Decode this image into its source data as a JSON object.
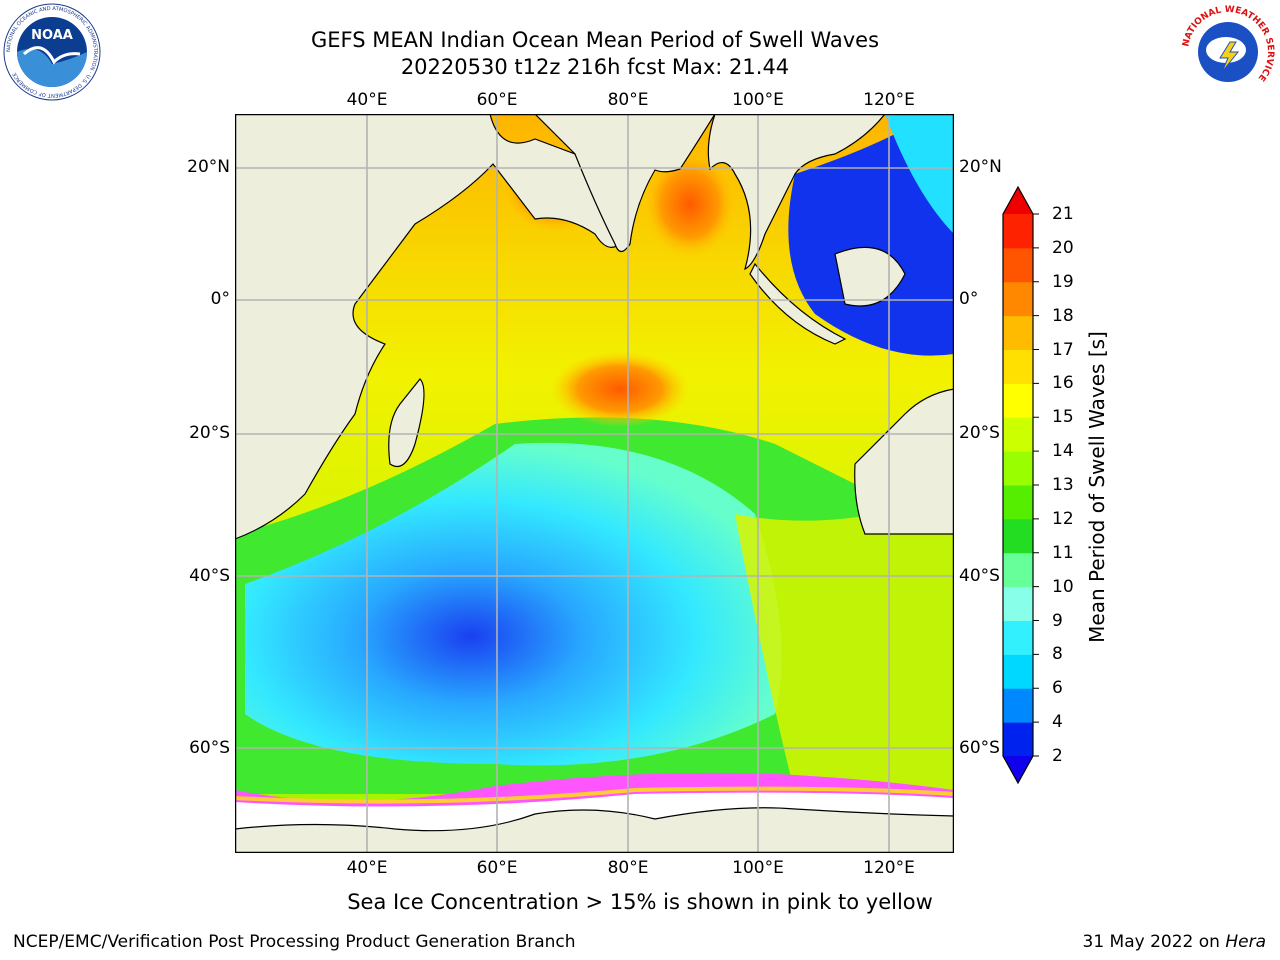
{
  "title": {
    "line1": "GEFS MEAN Indian Ocean Mean Period of Swell Waves",
    "line2": "20220530 t12z 216h fcst   Max: 21.44"
  },
  "axes": {
    "top_lon_labels": [
      "40°E",
      "60°E",
      "80°E",
      "100°E",
      "120°E"
    ],
    "bottom_lon_labels": [
      "40°E",
      "60°E",
      "80°E",
      "100°E",
      "120°E"
    ],
    "left_lat_labels": [
      "20°N",
      "0°",
      "20°S",
      "40°S",
      "60°S"
    ],
    "right_lat_labels": [
      "20°N",
      "0°",
      "20°S",
      "40°S",
      "60°S"
    ]
  },
  "colorbar": {
    "label": "Mean Period of Swell Waves [s]",
    "ticks": [
      "2",
      "4",
      "6",
      "8",
      "9",
      "10",
      "11",
      "12",
      "13",
      "14",
      "15",
      "16",
      "17",
      "18",
      "19",
      "20",
      "21"
    ],
    "colors": [
      "#0022ee",
      "#0088ff",
      "#00d8ff",
      "#33f0ff",
      "#88ffe8",
      "#66ff99",
      "#22dd22",
      "#55ee00",
      "#99ff00",
      "#ccff00",
      "#ffff00",
      "#ffe000",
      "#ffbb00",
      "#ff8800",
      "#ff5500",
      "#ff2200"
    ],
    "under_color": "#1100ee",
    "over_color": "#ee0000"
  },
  "caption": "Sea Ice Concentration > 15% is shown in pink to yellow",
  "credit_left": "NCEP/EMC/Verification Post Processing Product Generation Branch",
  "credit_right_prefix": "31 May 2022 on ",
  "credit_right_italic": "Hera",
  "logos": {
    "left": {
      "name": "noaa-logo",
      "text": "NOAA",
      "ring_text": "NATIONAL OCEANIC AND ATMOSPHERIC ADMINISTRATION · U.S. DEPARTMENT OF COMMERCE"
    },
    "right": {
      "name": "nws-logo",
      "ring_text": "NATIONAL WEATHER SERVICE"
    }
  }
}
